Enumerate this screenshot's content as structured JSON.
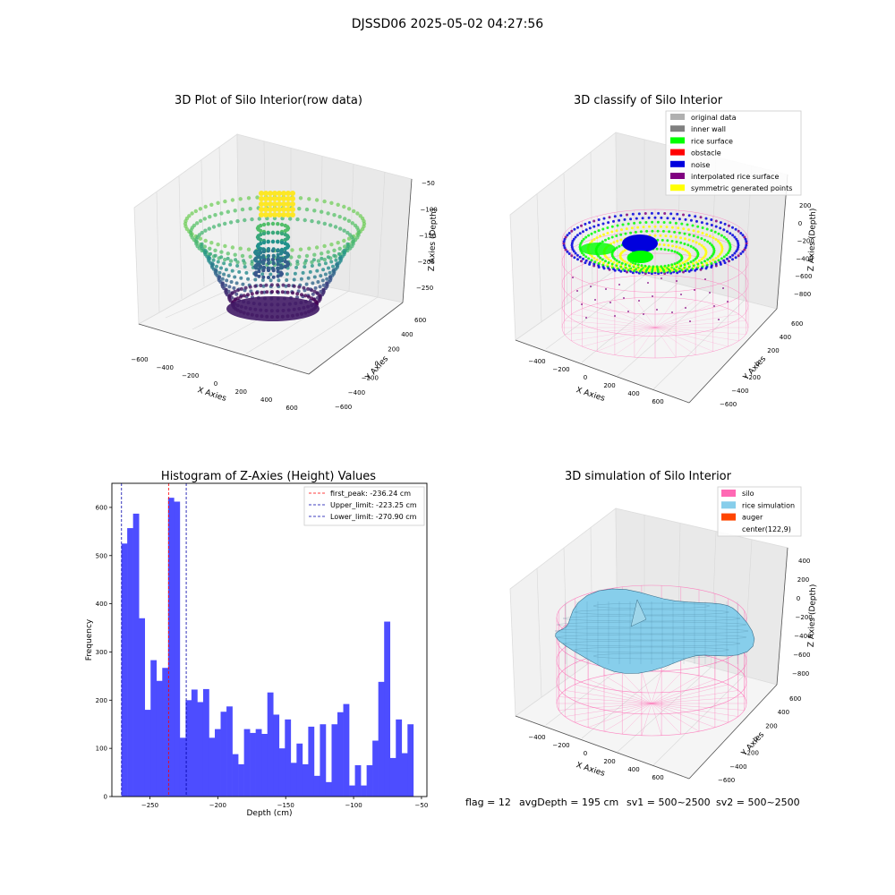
{
  "figure": {
    "suptitle": "DJSSD06 2025-05-02 04:27:56",
    "footer": {
      "flag": "flag = 12",
      "avg_depth": "avgDepth = 195 cm",
      "sv1": "sv1 = 500~2500",
      "sv2": "sv2 = 500~2500"
    }
  },
  "colors": {
    "hist_bar": "#4d4dff",
    "first_peak_line": "#ff0000",
    "limit_lines": "#0000aa",
    "silo": "#ff69b4",
    "rice_sim": "#87ceeb",
    "auger": "#ff4500",
    "original": "#b0b0b0",
    "inner_wall": "#808080",
    "rice_surface": "#00ff00",
    "obstacle": "#ff0000",
    "noise": "#0000dd",
    "interpolated": "#800080",
    "symmetric": "#ffff00"
  },
  "chart_data": [
    {
      "type": "scatter",
      "projection": "3d",
      "title": "3D Plot of Silo Interior(row data)",
      "xlabel": "X Axies",
      "ylabel": "Y Axies",
      "zlabel": "Z Axies (Depth)",
      "x_ticks": [
        "−600",
        "−400",
        "−200",
        "0",
        "200",
        "400",
        "600"
      ],
      "y_ticks": [
        "−600",
        "−400",
        "−200",
        "0",
        "200",
        "400",
        "600"
      ],
      "z_ticks": [
        "−50",
        "−100",
        "−150",
        "−200",
        "−250"
      ],
      "colormap": "viridis"
    },
    {
      "type": "scatter",
      "projection": "3d",
      "title": "3D classify of Silo Interior",
      "xlabel": "X Axies",
      "ylabel": "Y Axies",
      "zlabel": "Z Axies (Depth)",
      "x_ticks": [
        "−400",
        "−200",
        "0",
        "200",
        "400",
        "600"
      ],
      "y_ticks": [
        "−600",
        "−400",
        "−200",
        "0",
        "200",
        "400",
        "600"
      ],
      "z_ticks": [
        "200",
        "0",
        "−200",
        "−400",
        "−600",
        "−800"
      ],
      "legend": {
        "placement": "top-right",
        "entries": [
          "original data",
          "inner wall",
          "rice surface",
          "obstacle",
          "noise",
          "interpolated rice surface",
          "symmetric generated points"
        ]
      }
    },
    {
      "type": "bar",
      "title": "Histogram of Z-Axies (Height) Values",
      "xlabel": "Depth (cm)",
      "ylabel": "Frequency",
      "xlim": [
        -278,
        -46
      ],
      "ylim": [
        0,
        650
      ],
      "x_ticks": [
        -250,
        -200,
        -150,
        -100,
        -50
      ],
      "y_ticks": [
        0,
        100,
        200,
        300,
        400,
        500,
        600
      ],
      "bin_start": -271,
      "bin_width": 4.3,
      "values": [
        525,
        557,
        587,
        370,
        180,
        283,
        240,
        267,
        620,
        612,
        122,
        200,
        222,
        196,
        223,
        122,
        140,
        176,
        187,
        88,
        67,
        140,
        132,
        140,
        130,
        216,
        170,
        100,
        160,
        70,
        110,
        67,
        145,
        43,
        150,
        30,
        150,
        175,
        192,
        23,
        65,
        23,
        65,
        116,
        238,
        363,
        80,
        160,
        90,
        150
      ],
      "lines": [
        {
          "x": -236.24,
          "label": "first_peak: -236.24 cm",
          "style": "dashed"
        },
        {
          "x": -223.25,
          "label": "Upper_limit: -223.25 cm",
          "style": "dashed"
        },
        {
          "x": -270.9,
          "label": "Lower_limit: -270.90 cm",
          "style": "dashed"
        }
      ],
      "legend_placement": "top-right"
    },
    {
      "type": "surface",
      "projection": "3d",
      "title": "3D simulation of Silo Interior",
      "xlabel": "X Axies",
      "ylabel": "Y Axies",
      "zlabel": "Z Axies (Depth)",
      "x_ticks": [
        "−400",
        "−200",
        "0",
        "200",
        "400",
        "600"
      ],
      "y_ticks": [
        "−600",
        "−400",
        "−200",
        "0",
        "200",
        "400",
        "600"
      ],
      "z_ticks": [
        "400",
        "200",
        "0",
        "−200",
        "−400",
        "−600",
        "−800"
      ],
      "legend": {
        "placement": "top-right",
        "entries": [
          "silo",
          "rice simulation",
          "auger",
          "center(122,9)"
        ]
      }
    }
  ]
}
